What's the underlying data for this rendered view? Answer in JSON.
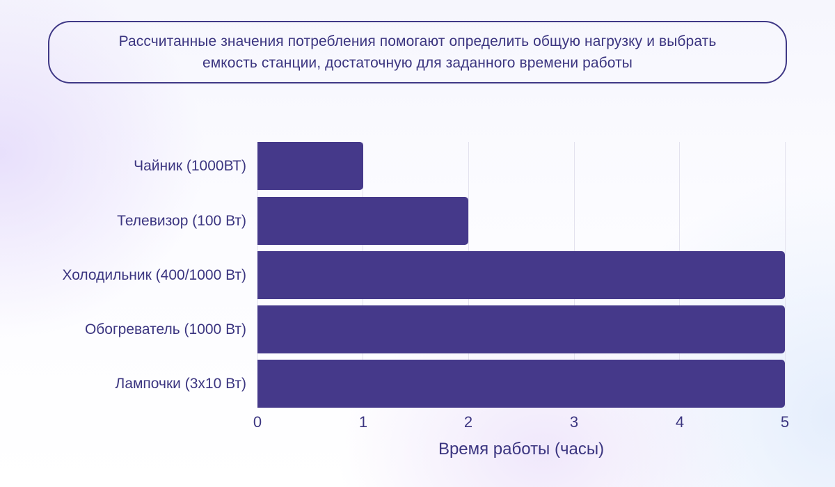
{
  "caption": {
    "line1": "Рассчитанные значения потребления помогают определить общую нагрузку и выбрать",
    "line2": "емкость станции, достаточную для заданного времени работы"
  },
  "colors": {
    "bar": "#45398a",
    "text": "#3b3580",
    "border": "#3f3886",
    "grid": "#e3e2ee"
  },
  "chart_data": {
    "type": "bar",
    "orientation": "horizontal",
    "title": "",
    "categories": [
      "Чайник (1000ВТ)",
      "Телевизор (100 Вт)",
      "Холодильник (400/1000 Вт)",
      "Обогреватель (1000 Вт)",
      "Лампочки (3x10 Вт)"
    ],
    "values": [
      1,
      2,
      5,
      5,
      5
    ],
    "xlabel": "Время работы (часы)",
    "ylabel": "",
    "xlim": [
      0,
      5
    ],
    "xticks": [
      "0",
      "1",
      "2",
      "3",
      "4",
      "5"
    ],
    "grid": "vertical",
    "legend": "none"
  }
}
